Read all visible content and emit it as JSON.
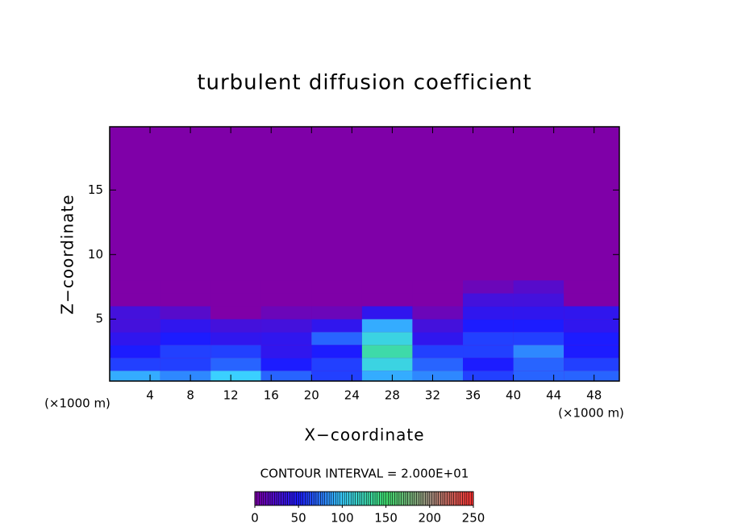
{
  "chart_data": {
    "type": "heatmap",
    "title": "turbulent diffusion coefficient",
    "x_label": "X−coordinate",
    "y_label": "Z−coordinate",
    "x_unit_left": "(×1000 m)",
    "x_unit_right": "(×1000 m)",
    "annotation": "CONTOUR INTERVAL = 2.000E+01",
    "xlim": [
      0,
      50.5
    ],
    "ylim": [
      0.2,
      19.9
    ],
    "xticks": [
      4,
      8,
      12,
      16,
      20,
      24,
      28,
      32,
      36,
      40,
      44,
      48
    ],
    "yticks": [
      5,
      10,
      15
    ],
    "x_edges": [
      0,
      5,
      10,
      15,
      20,
      25,
      30,
      35,
      40,
      45,
      50.5
    ],
    "y_edges": [
      0.2,
      1,
      2,
      3,
      4,
      5,
      6,
      7,
      8
    ],
    "z": [
      [
        90,
        80,
        100,
        70,
        60,
        90,
        80,
        60,
        70,
        70
      ],
      [
        60,
        60,
        70,
        50,
        60,
        110,
        70,
        50,
        70,
        60
      ],
      [
        50,
        60,
        60,
        40,
        50,
        130,
        60,
        60,
        80,
        50
      ],
      [
        40,
        50,
        40,
        40,
        70,
        110,
        40,
        60,
        60,
        50
      ],
      [
        30,
        40,
        30,
        30,
        40,
        90,
        30,
        50,
        50,
        40
      ],
      [
        30,
        20,
        0,
        10,
        10,
        40,
        10,
        40,
        40,
        40
      ],
      [
        0,
        0,
        0,
        0,
        0,
        0,
        0,
        30,
        30,
        0
      ],
      [
        0,
        0,
        0,
        0,
        0,
        0,
        0,
        10,
        20,
        0
      ]
    ],
    "colormap": [
      "#7f00a8",
      "#1c1cff",
      "#3ad0ff",
      "#40e070",
      "#a09080",
      "#ff3030"
    ],
    "colorbar_lim": [
      0,
      250
    ],
    "colorbar_ticks": [
      0,
      50,
      100,
      150,
      200,
      250
    ]
  }
}
